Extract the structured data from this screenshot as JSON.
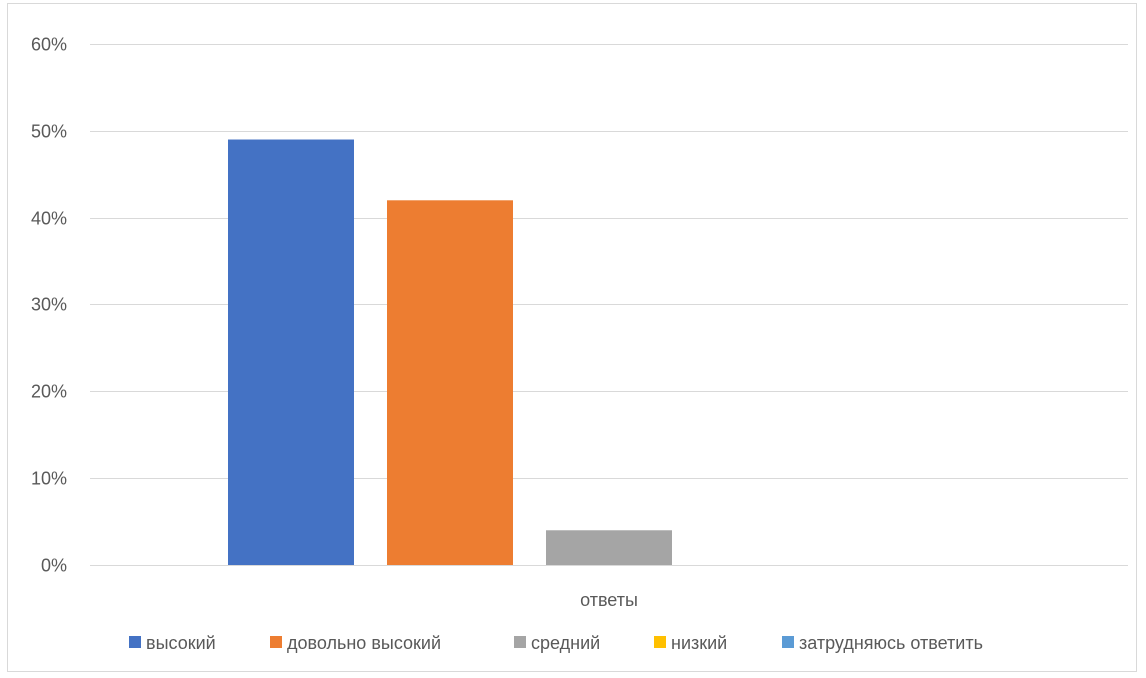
{
  "chart_data": {
    "type": "bar",
    "categories": [
      "ответы"
    ],
    "series": [
      {
        "name": "высокий",
        "values": [
          0.49
        ],
        "color": "#4472c4"
      },
      {
        "name": "довольно высокий",
        "values": [
          0.42
        ],
        "color": "#ed7d31"
      },
      {
        "name": "средний",
        "values": [
          0.04
        ],
        "color": "#a5a5a5"
      },
      {
        "name": "низкий",
        "values": [
          0.0
        ],
        "color": "#ffc000"
      },
      {
        "name": "затрудняюсь ответить",
        "values": [
          0.0
        ],
        "color": "#5b9bd5"
      }
    ],
    "yticks": [
      "0%",
      "10%",
      "20%",
      "30%",
      "40%",
      "50%",
      "60%"
    ],
    "ylim": [
      0,
      0.6
    ],
    "ytick_step": 0.1,
    "grid": true,
    "legend_position": "bottom",
    "gridline_color": "#d9d9d9"
  }
}
